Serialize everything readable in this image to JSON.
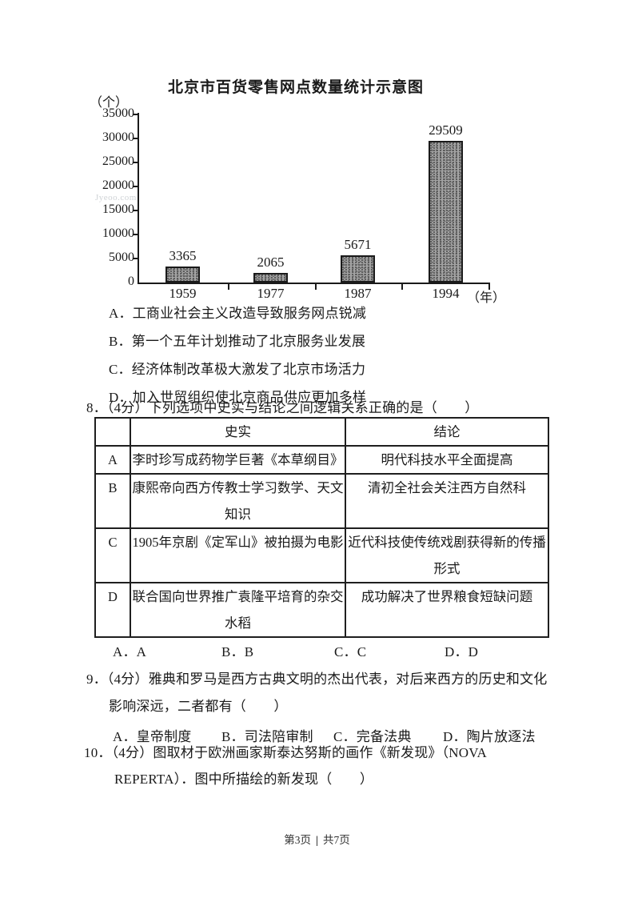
{
  "page": {
    "watermark": "Jyeoo.com",
    "footer": {
      "page_current": "第3页",
      "separator": "|",
      "page_total": "共7页"
    }
  },
  "colors": {
    "text": "#1a1a1a",
    "bar_fill": "#a3a3a3",
    "bar_border": "#1a1a1a",
    "watermark": "#cfd3d6"
  },
  "chart_data": {
    "type": "bar",
    "title": "北京市百货零售网点数量统计示意图",
    "ylabel": "（个）",
    "xlabel": "（年）",
    "categories": [
      "1959",
      "1977",
      "1987",
      "1994"
    ],
    "values": [
      3365,
      2065,
      5671,
      29509
    ],
    "bar_labels": [
      "3365",
      "2065",
      "5671",
      "29509"
    ],
    "ylim": [
      0,
      35000
    ],
    "yticks": [
      35000,
      30000,
      25000,
      20000,
      15000,
      10000,
      5000,
      0
    ],
    "grid": "off",
    "legend": "none"
  },
  "q7": {
    "options": [
      "A．工商业社会主义改造导致服务网点锐减",
      "B．第一个五年计划推动了北京服务业发展",
      "C．经济体制改革极大激发了北京市场活力",
      "D．加入世贸组织使北京商品供应更加多样"
    ]
  },
  "q8": {
    "stem": "8．（4分）下列选项中史实与结论之间逻辑关系正确的是（　　）",
    "table": {
      "headers": [
        "",
        "史实",
        "结论"
      ],
      "rows": [
        {
          "letter": "A",
          "fact": "李时珍写成药物学巨著《本草纲目》",
          "conclusion": "明代科技水平全面提高"
        },
        {
          "letter": "B",
          "fact": "康熙帝向西方传教士学习数学、天文知识",
          "conclusion": "清初全社会关注西方自然科"
        },
        {
          "letter": "C",
          "fact": "1905年京剧《定军山》被拍摄为电影",
          "conclusion": "近代科技使传统戏剧获得新的传播形式"
        },
        {
          "letter": "D",
          "fact": "联合国向世界推广袁隆平培育的杂交水稻",
          "conclusion": "成功解决了世界粮食短缺问题"
        }
      ]
    },
    "answers": [
      "A．A",
      "B．B",
      "C．C",
      "D．D"
    ]
  },
  "q9": {
    "line1": "9．（4分）雅典和罗马是西方古典文明的杰出代表，对后来西方的历史和文化",
    "line2": "影响深远，二者都有（　　）",
    "options": [
      "A．皇帝制度",
      "B．司法陪审制",
      "C．完备法典",
      "D．陶片放逐法"
    ]
  },
  "q10": {
    "line1": "10．（4分）图取材于欧洲画家斯泰达努斯的画作《新发现》（NOVA",
    "line2": "REPERTA）．图中所描绘的新发现（　　）"
  }
}
